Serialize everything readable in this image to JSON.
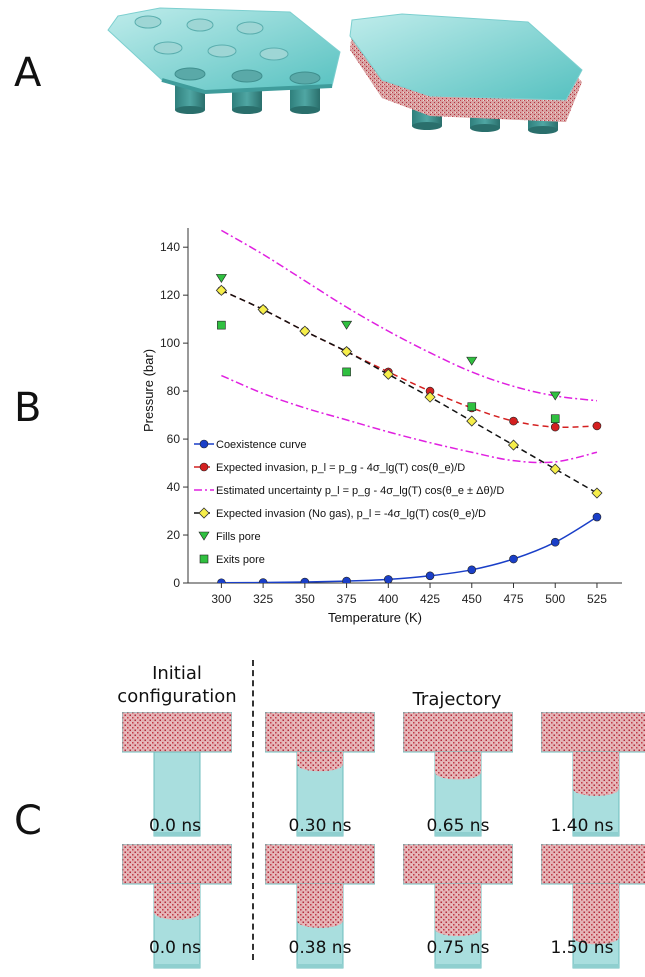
{
  "panels": {
    "a": "A",
    "b": "B",
    "c": "C"
  },
  "chart_data": {
    "type": "line",
    "xlabel": "Temperature (K)",
    "ylabel": "Pressure (bar)",
    "xlim": [
      280,
      540
    ],
    "ylim": [
      0,
      148
    ],
    "xticks": [
      300,
      325,
      350,
      375,
      400,
      425,
      450,
      475,
      500,
      525
    ],
    "yticks": [
      0,
      20,
      40,
      60,
      80,
      100,
      120,
      140
    ],
    "grid": false,
    "legend_position": "lower-left",
    "legend": [
      {
        "id": "coex",
        "text": "Coexistence curve"
      },
      {
        "id": "expinv",
        "text": "Expected invasion, p_l = p_g - 4σ_lg(T) cos(θ_e)/D"
      },
      {
        "id": "unc",
        "text": "Estimated uncertainty p_l = p_g - 4σ_lg(T) cos(θ_e ± Δθ)/D"
      },
      {
        "id": "nogas",
        "text": "Expected invasion (No gas), p_l = -4σ_lg(T) cos(θ_e)/D"
      },
      {
        "id": "fills",
        "text": "Fills pore"
      },
      {
        "id": "exits",
        "text": "Exits pore"
      }
    ],
    "series": [
      {
        "id": "coex",
        "color": "#1a3fc8",
        "line": "solid",
        "marker": "circle",
        "x": [
          300,
          325,
          350,
          375,
          400,
          425,
          450,
          475,
          500,
          525
        ],
        "y": [
          0.1,
          0.2,
          0.4,
          0.8,
          1.5,
          3,
          5.5,
          10,
          17,
          27.5
        ]
      },
      {
        "id": "expinv",
        "color": "#d42020",
        "line": "dashed",
        "marker": "circle",
        "x": [
          300,
          325,
          350,
          375,
          400,
          425,
          450,
          475,
          500,
          525
        ],
        "y": [
          122,
          114,
          105,
          96.5,
          88,
          80,
          73,
          67.5,
          65,
          65.5
        ]
      },
      {
        "id": "unc_upper",
        "color": "#e020e0",
        "line": "dashdot",
        "marker": "none",
        "x": [
          300,
          325,
          350,
          375,
          400,
          425,
          450,
          475,
          500,
          525
        ],
        "y": [
          147,
          137,
          126,
          115,
          105,
          96,
          88,
          82,
          78,
          76
        ]
      },
      {
        "id": "unc_lower",
        "color": "#e020e0",
        "line": "dashdot",
        "marker": "none",
        "x": [
          300,
          325,
          350,
          375,
          400,
          425,
          450,
          475,
          500,
          525
        ],
        "y": [
          86.5,
          79,
          73,
          68,
          63,
          58.5,
          54.5,
          51,
          50.5,
          54.5
        ]
      },
      {
        "id": "nogas",
        "color": "#111111",
        "line": "dashed",
        "marker": "diamond",
        "marker_color": "#f6ee4a",
        "x": [
          300,
          325,
          350,
          375,
          400,
          425,
          450,
          475,
          500,
          525
        ],
        "y": [
          122,
          114,
          105,
          96.5,
          87,
          77.5,
          67.5,
          57.5,
          47.5,
          37.5
        ]
      },
      {
        "id": "fills",
        "color": "#30c040",
        "line": "none",
        "marker": "triangle-down",
        "x": [
          300,
          375,
          450,
          500
        ],
        "y": [
          127,
          107.5,
          92.5,
          78
        ]
      },
      {
        "id": "exits",
        "color": "#30c040",
        "line": "none",
        "marker": "square",
        "x": [
          300,
          375,
          450,
          500
        ],
        "y": [
          107.5,
          88,
          73.5,
          68.5
        ]
      }
    ]
  },
  "panel_c": {
    "initial_header": "Initial configuration",
    "initial_header_lines": [
      "Initial",
      "configuration"
    ],
    "trajectory_header": "Trajectory",
    "row1_times": [
      "0.0 ns",
      "0.30 ns",
      "0.65 ns",
      "1.40 ns"
    ],
    "row2_times": [
      "0.0 ns",
      "0.38 ns",
      "0.75 ns",
      "1.50 ns"
    ],
    "row1_fill": [
      0.0,
      0.15,
      0.25,
      0.45
    ],
    "row2_fill": [
      0.35,
      0.45,
      0.55,
      0.65
    ]
  }
}
